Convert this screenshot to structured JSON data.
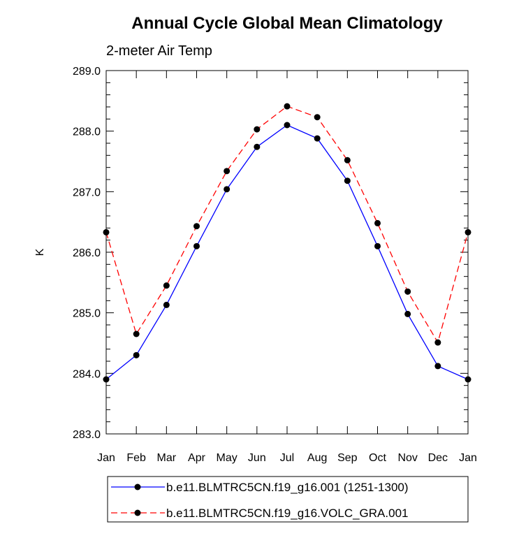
{
  "chart_data": {
    "type": "line",
    "title": "Annual Cycle Global Mean Climatology",
    "subtitle": "2-meter Air Temp",
    "ylabel": "K",
    "xlabel": "",
    "categories": [
      "Jan",
      "Feb",
      "Mar",
      "Apr",
      "May",
      "Jun",
      "Jul",
      "Aug",
      "Sep",
      "Oct",
      "Nov",
      "Dec",
      "Jan"
    ],
    "ylim": [
      283.0,
      289.0
    ],
    "yticks": [
      "283.0",
      "284.0",
      "285.0",
      "286.0",
      "287.0",
      "288.0",
      "289.0"
    ],
    "grid": false,
    "legend_position": "bottom",
    "series": [
      {
        "name": "b.e11.BLMTRC5CN.f19_g16.001 (1251-1300)",
        "color": "#0000ff",
        "dash": "solid",
        "values": [
          283.9,
          284.3,
          285.13,
          286.1,
          287.04,
          287.74,
          288.1,
          287.88,
          287.18,
          286.1,
          284.98,
          284.12,
          283.9
        ]
      },
      {
        "name": "b.e11.BLMTRC5CN.f19_g16.VOLC_GRA.001",
        "color": "#ff0000",
        "dash": "dashed",
        "values": [
          286.33,
          284.65,
          285.45,
          286.43,
          287.34,
          288.03,
          288.41,
          288.23,
          287.52,
          286.48,
          285.35,
          284.51,
          286.33
        ]
      }
    ]
  }
}
